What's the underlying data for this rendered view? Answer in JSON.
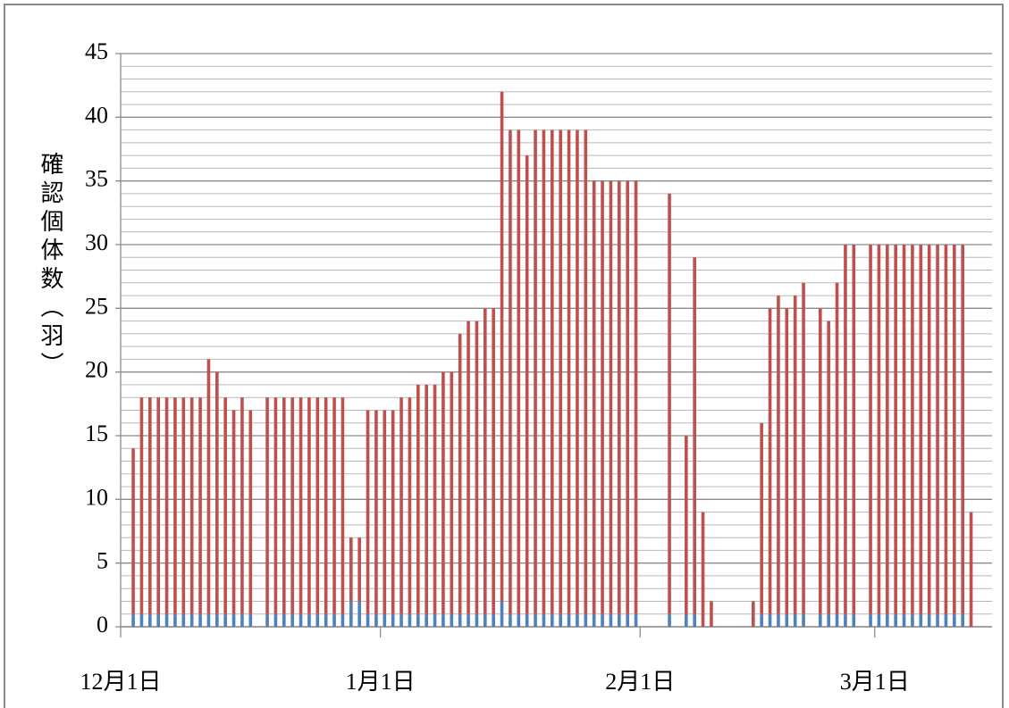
{
  "chart_data": {
    "type": "bar",
    "stacked": true,
    "ylabel": "確認個体数（羽）",
    "categories": [
      "12月1日",
      null,
      null,
      null,
      null,
      null,
      null,
      null,
      null,
      null,
      null,
      null,
      null,
      null,
      null,
      null,
      null,
      null,
      null,
      null,
      null,
      null,
      null,
      null,
      null,
      null,
      null,
      null,
      null,
      null,
      null,
      "1月1日",
      null,
      null,
      null,
      null,
      null,
      null,
      null,
      null,
      null,
      null,
      null,
      null,
      null,
      null,
      null,
      null,
      null,
      null,
      null,
      null,
      null,
      null,
      null,
      null,
      null,
      null,
      null,
      null,
      null,
      null,
      "2月1日",
      null,
      null,
      null,
      null,
      null,
      null,
      null,
      null,
      null,
      null,
      null,
      null,
      null,
      null,
      null,
      null,
      null,
      null,
      null,
      null,
      null,
      null,
      null,
      null,
      null,
      null,
      null,
      "3月1日",
      null,
      null,
      null,
      null,
      null,
      null,
      null,
      null,
      null,
      null,
      null,
      null,
      null
    ],
    "series": [
      {
        "color": "#4f81bd",
        "values": [
          null,
          1,
          1,
          1,
          1,
          1,
          1,
          1,
          1,
          1,
          1,
          1,
          1,
          1,
          1,
          1,
          null,
          1,
          1,
          1,
          1,
          1,
          1,
          1,
          1,
          1,
          1,
          2,
          2,
          1,
          1,
          1,
          1,
          1,
          1,
          1,
          1,
          1,
          1,
          1,
          1,
          1,
          1,
          1,
          1,
          2,
          1,
          1,
          1,
          1,
          1,
          1,
          1,
          1,
          1,
          1,
          1,
          1,
          1,
          1,
          1,
          1,
          null,
          null,
          null,
          1,
          null,
          1,
          1,
          0,
          0,
          null,
          null,
          null,
          null,
          0,
          1,
          1,
          1,
          1,
          1,
          1,
          null,
          1,
          1,
          1,
          1,
          1,
          null,
          1,
          1,
          1,
          1,
          1,
          1,
          1,
          1,
          1,
          1,
          1,
          1,
          0,
          null,
          null
        ]
      },
      {
        "color": "#c0504d",
        "values": [
          null,
          13,
          17,
          17,
          17,
          17,
          17,
          17,
          17,
          17,
          20,
          19,
          17,
          16,
          17,
          16,
          null,
          17,
          17,
          17,
          17,
          17,
          17,
          17,
          17,
          17,
          17,
          5,
          5,
          16,
          16,
          16,
          16,
          17,
          17,
          18,
          18,
          18,
          19,
          19,
          22,
          23,
          23,
          24,
          24,
          40,
          38,
          38,
          36,
          38,
          38,
          38,
          38,
          38,
          38,
          38,
          34,
          34,
          34,
          34,
          34,
          34,
          null,
          null,
          null,
          33,
          null,
          14,
          28,
          9,
          2,
          null,
          null,
          null,
          null,
          2,
          15,
          24,
          25,
          24,
          25,
          26,
          null,
          24,
          23,
          26,
          29,
          29,
          null,
          29,
          29,
          29,
          29,
          29,
          29,
          29,
          29,
          29,
          29,
          29,
          29,
          9,
          null,
          null
        ]
      }
    ],
    "ylim": [
      0,
      45
    ],
    "yticks": [
      0,
      5,
      10,
      15,
      20,
      25,
      30,
      35,
      40,
      45
    ],
    "minor_yticks": [
      1,
      2,
      3,
      4,
      6,
      7,
      8,
      9,
      11,
      12,
      13,
      14,
      16,
      17,
      18,
      19,
      21,
      22,
      23,
      24,
      26,
      27,
      28,
      29,
      31,
      32,
      33,
      34,
      36,
      37,
      38,
      39,
      41,
      42,
      43,
      44
    ],
    "grid": true
  }
}
